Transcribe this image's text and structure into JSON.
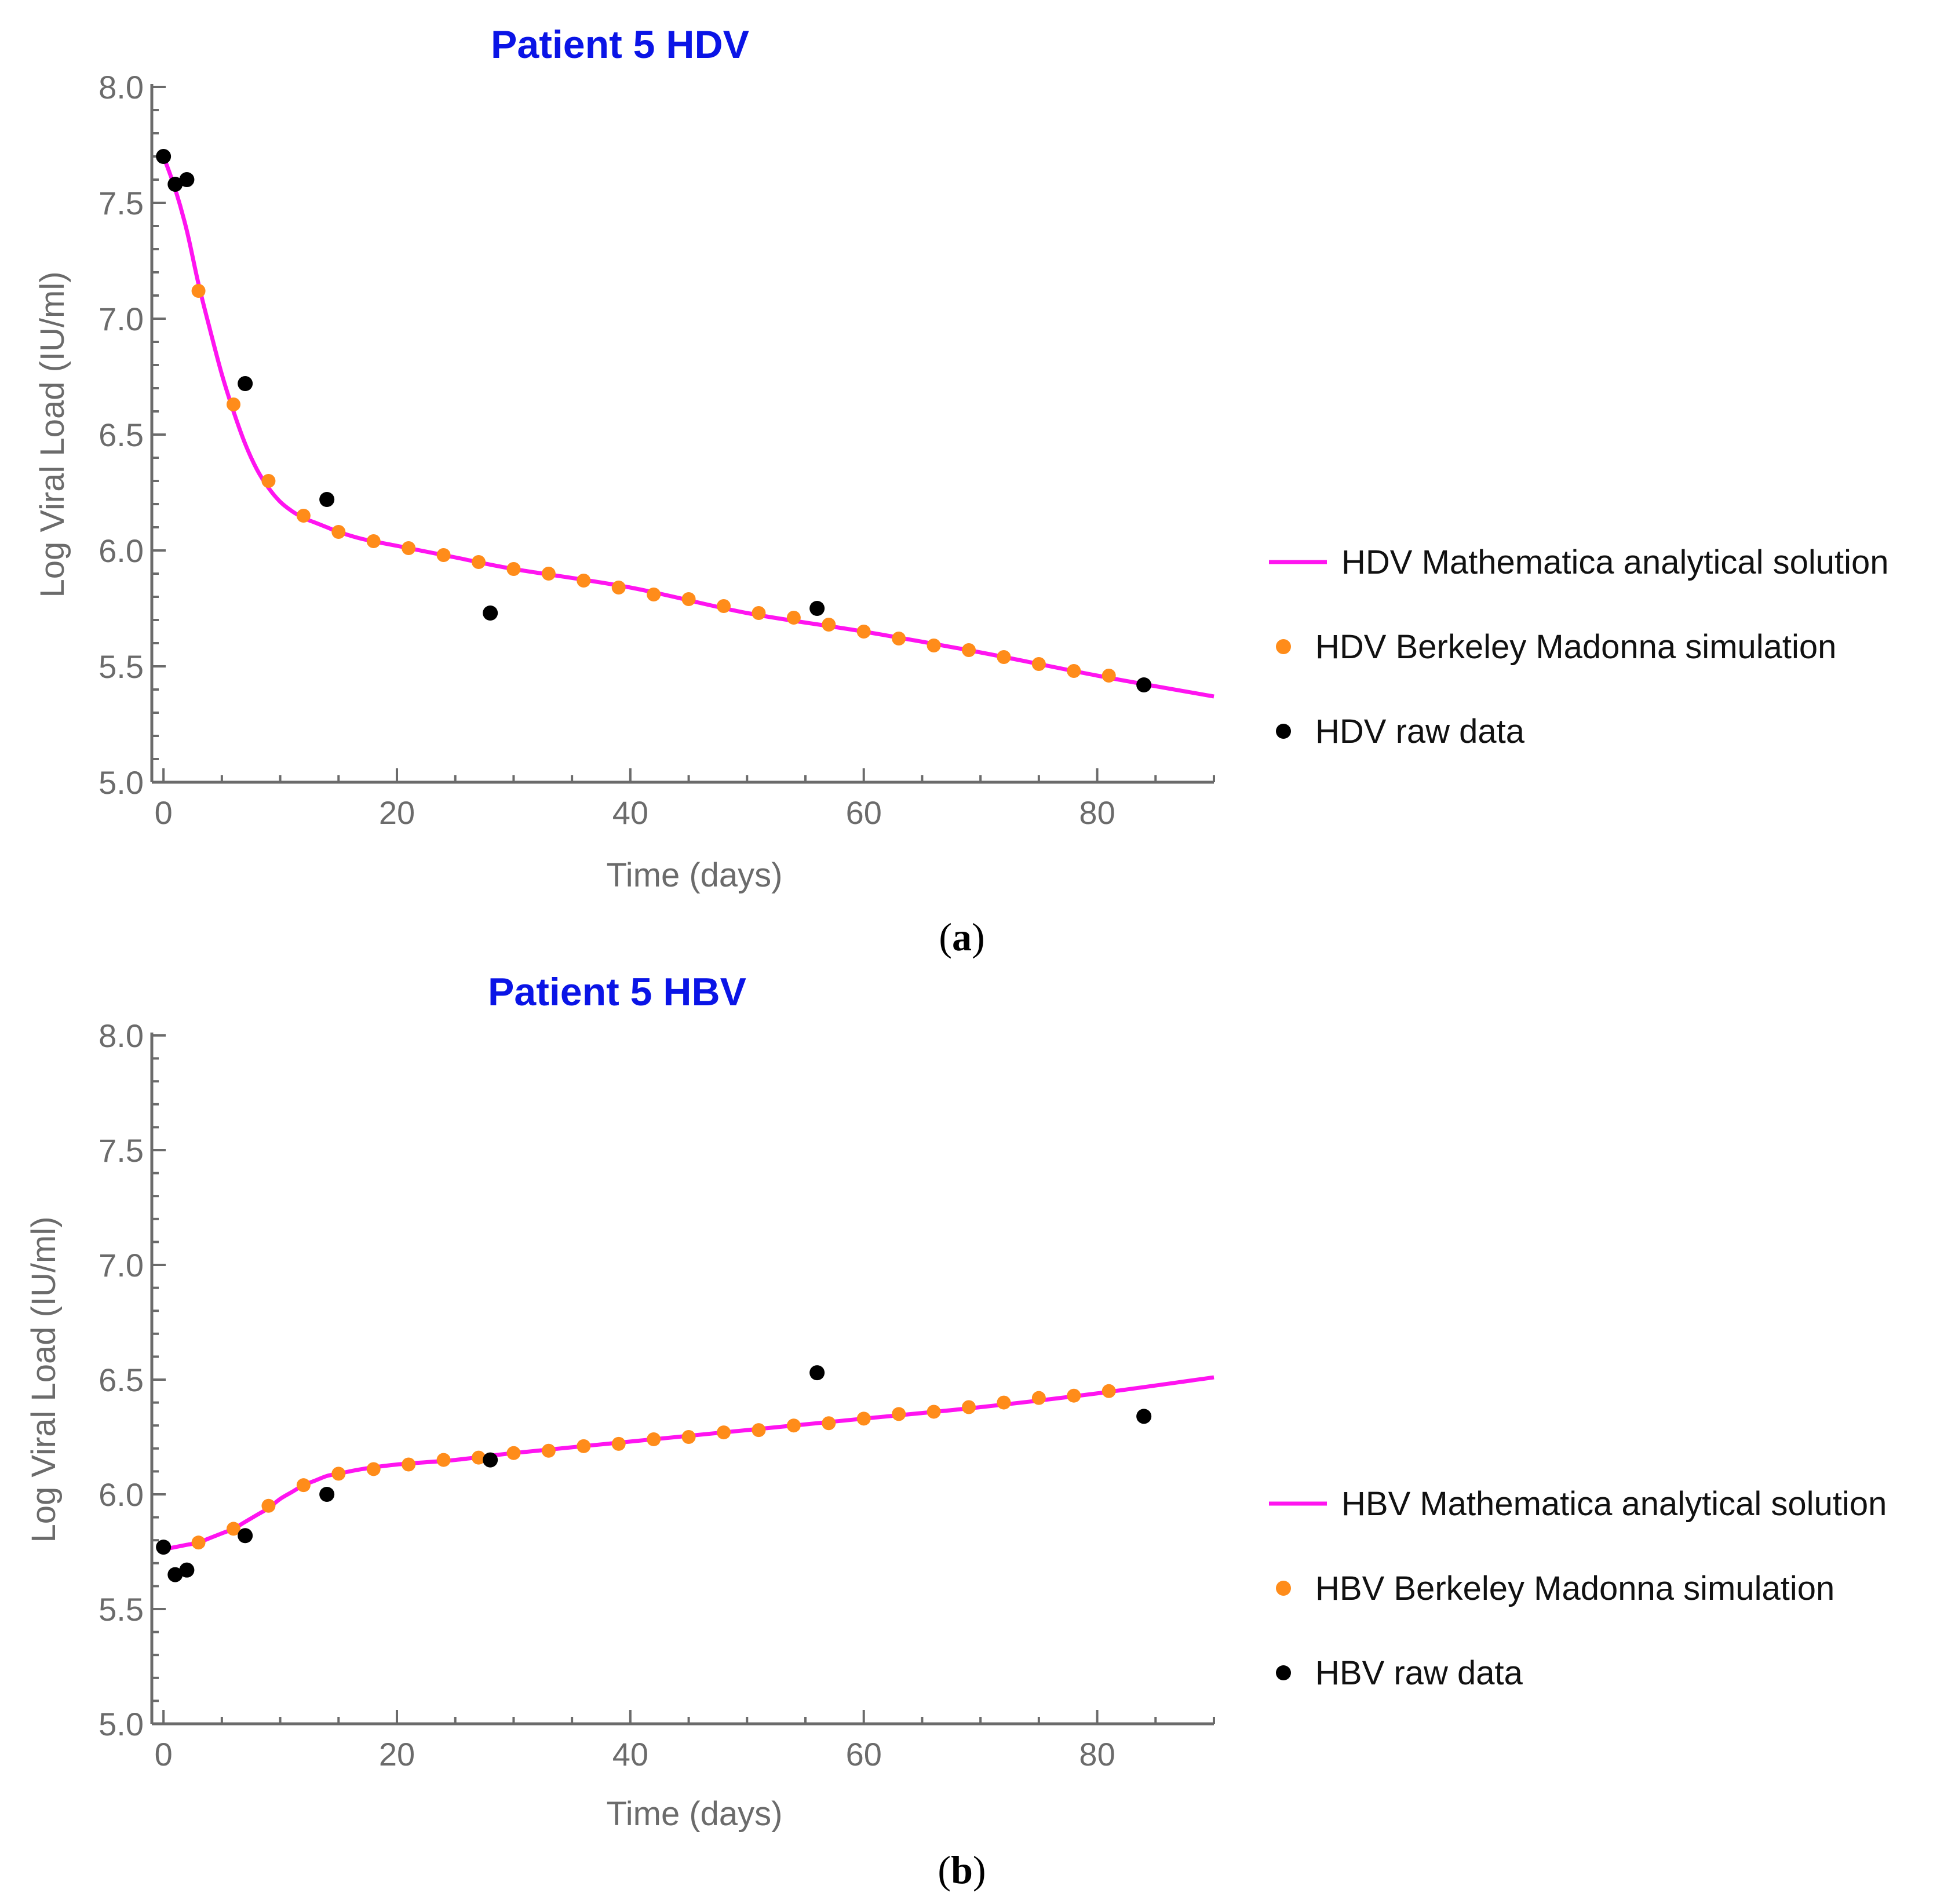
{
  "chart_data": [
    {
      "type": "line",
      "title": "Patient 5 HDV",
      "xlabel": "Time (days)",
      "ylabel": "Log Viral Load (IU/ml)",
      "xlim": [
        -1,
        90
      ],
      "ylim": [
        5.0,
        8.0
      ],
      "x_ticks": [
        0,
        20,
        40,
        60,
        80
      ],
      "y_ticks": [
        5.0,
        5.5,
        6.0,
        6.5,
        7.0,
        7.5,
        8.0
      ],
      "x_tick_labels": [
        "0",
        "20",
        "40",
        "60",
        "80"
      ],
      "y_tick_labels": [
        "5.0",
        "5.5",
        "6.0",
        "6.5",
        "7.0",
        "7.5",
        "8.0"
      ],
      "caption": "(a)",
      "series": [
        {
          "name": "HDV Mathematica analytical solution",
          "kind": "line",
          "color": "#ff14f0",
          "x": [
            0,
            1,
            2,
            3,
            4,
            5,
            6,
            7,
            8,
            9,
            10,
            11,
            12,
            13,
            14,
            15,
            17,
            20,
            25,
            30,
            40,
            50,
            60,
            70,
            80,
            90
          ],
          "y": [
            7.7,
            7.56,
            7.38,
            7.15,
            6.95,
            6.76,
            6.6,
            6.46,
            6.35,
            6.27,
            6.21,
            6.17,
            6.14,
            6.12,
            6.1,
            6.08,
            6.05,
            6.02,
            5.97,
            5.92,
            5.84,
            5.73,
            5.65,
            5.56,
            5.46,
            5.37
          ]
        },
        {
          "name": "HDV Berkeley Madonna simulation",
          "kind": "points",
          "color": "#ff8c1a",
          "x": [
            0,
            3,
            6,
            9,
            12,
            15,
            18,
            21,
            24,
            27,
            30,
            33,
            36,
            39,
            42,
            45,
            48,
            51,
            54,
            57,
            60,
            63,
            66,
            69,
            72,
            75,
            78,
            81
          ],
          "y": [
            7.7,
            7.12,
            6.63,
            6.3,
            6.15,
            6.08,
            6.04,
            6.01,
            5.98,
            5.95,
            5.92,
            5.9,
            5.87,
            5.84,
            5.81,
            5.79,
            5.76,
            5.73,
            5.71,
            5.68,
            5.65,
            5.62,
            5.59,
            5.57,
            5.54,
            5.51,
            5.48,
            5.46
          ]
        },
        {
          "name": "HDV raw data",
          "kind": "points",
          "color": "#000000",
          "x": [
            0,
            1,
            2,
            7,
            14,
            28,
            56,
            84
          ],
          "y": [
            7.7,
            7.58,
            7.6,
            6.72,
            6.22,
            5.73,
            5.75,
            5.42
          ]
        }
      ]
    },
    {
      "type": "line",
      "title": "Patient 5 HBV",
      "xlabel": "Time (days)",
      "ylabel": "Log Viral Load (IU/ml)",
      "xlim": [
        -1,
        90
      ],
      "ylim": [
        5.0,
        8.0
      ],
      "x_ticks": [
        0,
        20,
        40,
        60,
        80
      ],
      "y_ticks": [
        5.0,
        5.5,
        6.0,
        6.5,
        7.0,
        7.5,
        8.0
      ],
      "x_tick_labels": [
        "0",
        "20",
        "40",
        "60",
        "80"
      ],
      "y_tick_labels": [
        "5.0",
        "5.5",
        "6.0",
        "6.5",
        "7.0",
        "7.5",
        "8.0"
      ],
      "caption": "(b)",
      "series": [
        {
          "name": "HBV Mathematica analytical solution",
          "kind": "line",
          "color": "#ff14f0",
          "x": [
            0,
            1,
            2,
            3,
            4,
            5,
            6,
            7,
            8,
            9,
            10,
            11,
            12,
            13,
            14,
            15,
            17,
            20,
            25,
            30,
            40,
            50,
            60,
            70,
            80,
            90
          ],
          "y": [
            5.76,
            5.77,
            5.78,
            5.79,
            5.81,
            5.83,
            5.85,
            5.88,
            5.91,
            5.94,
            5.98,
            6.01,
            6.04,
            6.06,
            6.08,
            6.09,
            6.11,
            6.13,
            6.15,
            6.18,
            6.23,
            6.28,
            6.33,
            6.38,
            6.44,
            6.51
          ]
        },
        {
          "name": "HBV Berkeley Madonna simulation",
          "kind": "points",
          "color": "#ff8c1a",
          "x": [
            0,
            3,
            6,
            9,
            12,
            15,
            18,
            21,
            24,
            27,
            30,
            33,
            36,
            39,
            42,
            45,
            48,
            51,
            54,
            57,
            60,
            63,
            66,
            69,
            72,
            75,
            78,
            81
          ],
          "y": [
            5.77,
            5.79,
            5.85,
            5.95,
            6.04,
            6.09,
            6.11,
            6.13,
            6.15,
            6.16,
            6.18,
            6.19,
            6.21,
            6.22,
            6.24,
            6.25,
            6.27,
            6.28,
            6.3,
            6.31,
            6.33,
            6.35,
            6.36,
            6.38,
            6.4,
            6.42,
            6.43,
            6.45
          ]
        },
        {
          "name": "HBV raw data",
          "kind": "points",
          "color": "#000000",
          "x": [
            0,
            1,
            2,
            7,
            14,
            28,
            56,
            84
          ],
          "y": [
            5.77,
            5.65,
            5.67,
            5.82,
            6.0,
            6.15,
            6.53,
            6.34
          ]
        }
      ]
    }
  ]
}
